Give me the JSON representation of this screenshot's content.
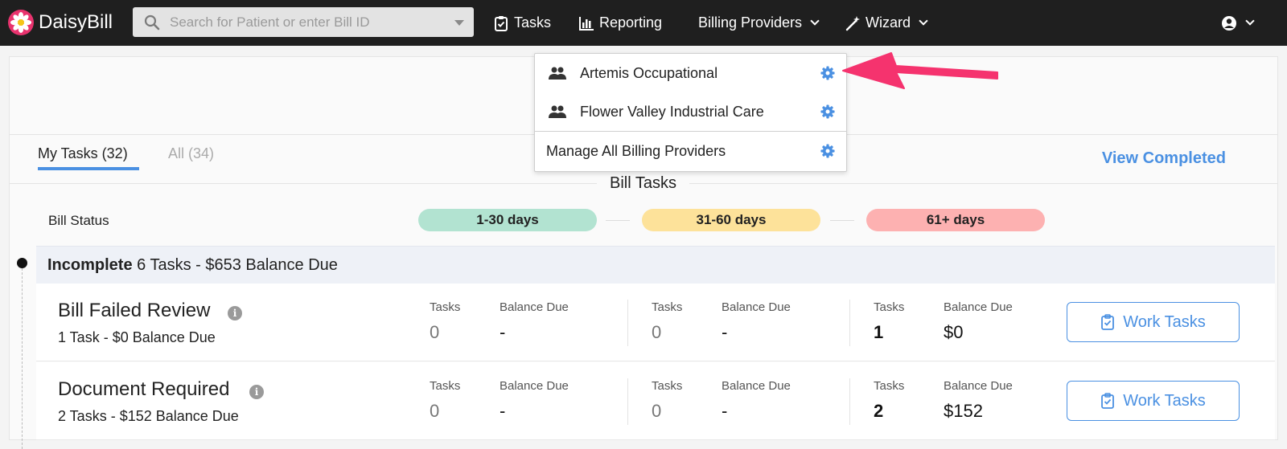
{
  "app": {
    "name": "DaisyBill"
  },
  "search": {
    "placeholder": "Search for Patient or enter Bill ID"
  },
  "nav": {
    "tasks": "Tasks",
    "reporting": "Reporting",
    "billing_providers": "Billing Providers",
    "wizard": "Wizard"
  },
  "dropdown": {
    "providers": [
      "Artemis Occupational",
      "Flower Valley Industrial Care"
    ],
    "manage_label": "Manage All Billing Providers"
  },
  "tabs": {
    "my_tasks": "My Tasks (32)",
    "all": "All (34)",
    "view_completed": "View Completed"
  },
  "section_title": "Bill Tasks",
  "bill_status": {
    "label": "Bill Status",
    "buckets": [
      "1-30 days",
      "31-60 days",
      "61+ days"
    ]
  },
  "group": {
    "name": "Incomplete",
    "summary": " 6 Tasks - $653 Balance Due"
  },
  "column_headers": {
    "tasks": "Tasks",
    "balance": "Balance Due"
  },
  "rows": [
    {
      "title": "Bill Failed Review",
      "subtitle": "1 Task - $0 Balance Due",
      "buckets": [
        {
          "tasks": "0",
          "balance": "-"
        },
        {
          "tasks": "0",
          "balance": "-"
        },
        {
          "tasks": "1",
          "balance": "$0"
        }
      ],
      "button": "Work Tasks"
    },
    {
      "title": "Document Required",
      "subtitle": "2 Tasks - $152 Balance Due",
      "buckets": [
        {
          "tasks": "0",
          "balance": "-"
        },
        {
          "tasks": "0",
          "balance": "-"
        },
        {
          "tasks": "2",
          "balance": "$152"
        }
      ],
      "button": "Work Tasks"
    }
  ],
  "colors": {
    "accent": "#4a90e2",
    "topbar": "#1f1f1f",
    "bucket_1_30": "#b2e3d1",
    "bucket_31_60": "#fde29a",
    "bucket_61_plus": "#fdb1b1",
    "annotation_arrow": "#f5336e"
  }
}
